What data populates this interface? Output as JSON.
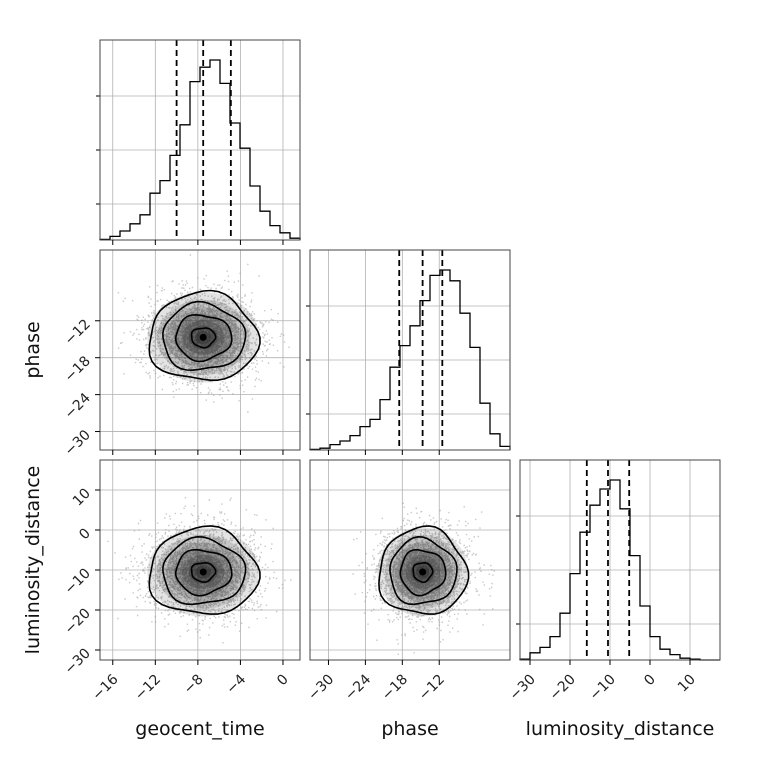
{
  "chart_data": {
    "type": "corner",
    "grid": true,
    "colors": {
      "line": "#000000",
      "grid": "#b0b0b0",
      "points": "#9a9a9a"
    },
    "parameters": [
      {
        "label": "geocent_time",
        "range": [
          -17.2,
          1.6
        ],
        "ticks": [
          -16,
          -12,
          -8,
          -4,
          0
        ],
        "quantiles": [
          -10,
          -7.5,
          -4.9
        ]
      },
      {
        "label": "phase",
        "range": [
          -33,
          -0.5
        ],
        "ticks": [
          -30,
          -24,
          -18,
          -12
        ],
        "quantiles": [
          -18.5,
          -14.7,
          -11.5
        ]
      },
      {
        "label": "luminosity_distance",
        "range": [
          -32.5,
          17.5
        ],
        "ticks": [
          -30,
          -20,
          -10,
          0,
          10
        ],
        "quantiles": [
          -15.8,
          -10.5,
          -5.2
        ]
      }
    ],
    "histograms": [
      {
        "param": "geocent_time",
        "bin_edges": [
          -17.2,
          -16.26,
          -15.32,
          -14.38,
          -13.44,
          -12.5,
          -11.56,
          -10.62,
          -9.68,
          -8.74,
          -7.8,
          -6.86,
          -5.92,
          -4.98,
          -4.04,
          -3.1,
          -2.16,
          -1.22,
          -0.28,
          0.66,
          1.6
        ],
        "counts": [
          0.003,
          0.02,
          0.05,
          0.09,
          0.14,
          0.26,
          0.33,
          0.47,
          0.64,
          0.88,
          0.96,
          1.0,
          0.87,
          0.65,
          0.51,
          0.3,
          0.16,
          0.08,
          0.04,
          0.01
        ]
      },
      {
        "param": "phase",
        "bin_edges": [
          -33.0,
          -31.375,
          -29.75,
          -28.125,
          -26.5,
          -24.875,
          -23.25,
          -21.625,
          -20.0,
          -18.375,
          -16.75,
          -15.125,
          -13.5,
          -11.875,
          -10.25,
          -8.625,
          -7.0,
          -5.375,
          -3.75,
          -2.125,
          -0.5
        ],
        "counts": [
          0.003,
          0.01,
          0.03,
          0.05,
          0.08,
          0.13,
          0.17,
          0.28,
          0.46,
          0.58,
          0.69,
          0.83,
          0.97,
          1.0,
          0.94,
          0.76,
          0.57,
          0.26,
          0.09,
          0.02
        ]
      },
      {
        "param": "luminosity_distance",
        "bin_edges": [
          -32.5,
          -30.0,
          -27.5,
          -25.0,
          -22.5,
          -20.0,
          -17.5,
          -15.0,
          -12.5,
          -10.0,
          -7.5,
          -5.0,
          -2.5,
          0.0,
          2.5,
          5.0,
          7.5,
          10.0,
          12.5,
          15.0,
          17.5
        ],
        "counts": [
          0.005,
          0.04,
          0.07,
          0.13,
          0.26,
          0.48,
          0.71,
          0.86,
          0.95,
          1.0,
          0.84,
          0.58,
          0.3,
          0.13,
          0.06,
          0.03,
          0.01,
          0.005,
          0.0,
          0.0
        ]
      }
    ],
    "scatter_2d": [
      {
        "x_param": "geocent_time",
        "y_param": "phase",
        "center": [
          -7.5,
          -14.7
        ],
        "std": [
          2.5,
          3.5
        ],
        "points": 3000
      },
      {
        "x_param": "geocent_time",
        "y_param": "luminosity_distance",
        "center": [
          -7.5,
          -10.5
        ],
        "std": [
          2.5,
          5.3
        ],
        "points": 3000
      },
      {
        "x_param": "phase",
        "y_param": "luminosity_distance",
        "center": [
          -14.7,
          -10.5
        ],
        "std": [
          3.5,
          5.3
        ],
        "points": 3000
      }
    ]
  }
}
